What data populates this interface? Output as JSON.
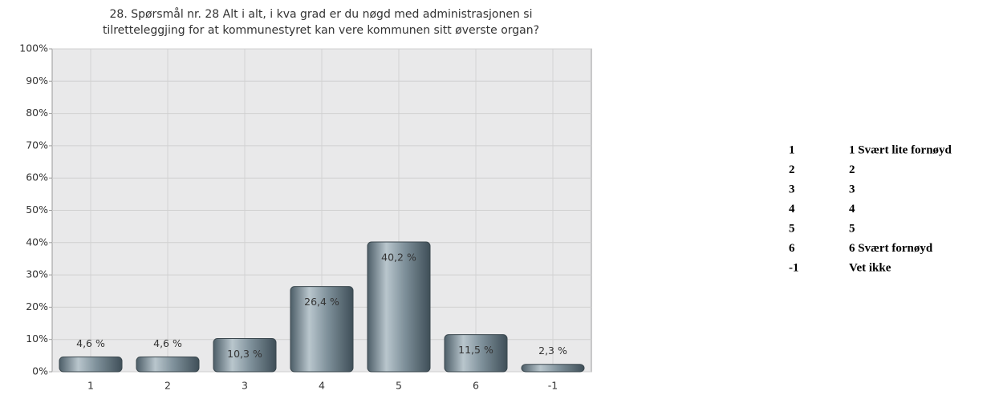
{
  "chart_data": {
    "type": "bar",
    "title": [
      "28. Spørsmål nr. 28 Alt i alt, i kva grad er du nøgd med administrasjonen si",
      "tilretteleggjing for at kommunestyret kan vere kommunen sitt øverste organ?"
    ],
    "categories": [
      "1",
      "2",
      "3",
      "4",
      "5",
      "6",
      "-1"
    ],
    "values": [
      4.6,
      4.6,
      10.3,
      26.4,
      40.2,
      11.5,
      2.3
    ],
    "value_labels": [
      "4,6 %",
      "4,6 %",
      "10,3 %",
      "26,4 %",
      "40,2 %",
      "11,5 %",
      "2,3 %"
    ],
    "color": "#6f8089",
    "ylim": [
      0,
      100
    ],
    "yticks": [
      {
        "value": 0,
        "label": "0%"
      },
      {
        "value": 10,
        "label": "10%"
      },
      {
        "value": 20,
        "label": "20%"
      },
      {
        "value": 30,
        "label": "30%"
      },
      {
        "value": 40,
        "label": "40%"
      },
      {
        "value": 50,
        "label": "50%"
      },
      {
        "value": 60,
        "label": "60%"
      },
      {
        "value": 70,
        "label": "70%"
      },
      {
        "value": 80,
        "label": "80%"
      },
      {
        "value": 90,
        "label": "90%"
      },
      {
        "value": 100,
        "label": "100%"
      }
    ],
    "grid": true
  },
  "legend_table": {
    "rows": [
      [
        "1",
        "1 Svært lite fornøyd"
      ],
      [
        "2",
        "2"
      ],
      [
        "3",
        "3"
      ],
      [
        "4",
        "4"
      ],
      [
        "5",
        "5"
      ],
      [
        "6",
        "6 Svært fornøyd"
      ],
      [
        "-1",
        "Vet ikke"
      ]
    ]
  }
}
